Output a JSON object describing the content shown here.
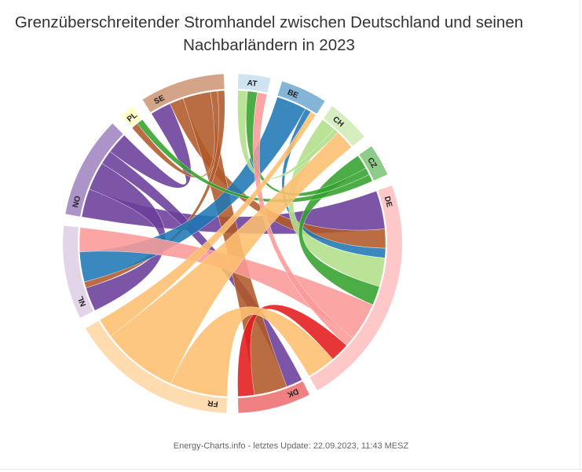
{
  "chart_data": {
    "type": "chord",
    "title_line1": "Grenzüberschreitender Stromhandel zwischen Deutschland und seinen",
    "title_line2": "Nachbarländern in 2023",
    "credits": "Energy-Charts.info - letztes Update: 22.09.2023, 11:43 MESZ",
    "nodes": [
      {
        "label": "AT",
        "color": "#a6cee3"
      },
      {
        "label": "BE",
        "color": "#1f78b4"
      },
      {
        "label": "CH",
        "color": "#b2df8a"
      },
      {
        "label": "CZ",
        "color": "#33a02c"
      },
      {
        "label": "DE",
        "color": "#fb9a99"
      },
      {
        "label": "DK",
        "color": "#e31a1c"
      },
      {
        "label": "FR",
        "color": "#fdbf6f"
      },
      {
        "label": "NL",
        "color": "#cab2d6"
      },
      {
        "label": "NO",
        "color": "#6a3d9a"
      },
      {
        "label": "PL",
        "color": "#ffff99"
      },
      {
        "label": "SE",
        "color": "#b15928"
      }
    ],
    "flows": [
      {
        "from": "NO",
        "to": "DE",
        "value": 4
      },
      {
        "from": "NO",
        "to": "NL",
        "value": 4
      },
      {
        "from": "NO",
        "to": "DK",
        "value": 2
      },
      {
        "from": "NO",
        "to": "SE",
        "value": 3
      },
      {
        "from": "SE",
        "to": "DE",
        "value": 2
      },
      {
        "from": "SE",
        "to": "DK",
        "value": 4
      },
      {
        "from": "SE",
        "to": "PL",
        "value": 1
      },
      {
        "from": "SE",
        "to": "NL",
        "value": 1
      },
      {
        "from": "BE",
        "to": "NL",
        "value": 5
      },
      {
        "from": "BE",
        "to": "DE",
        "value": 1
      },
      {
        "from": "CH",
        "to": "DE",
        "value": 3
      },
      {
        "from": "CH",
        "to": "AT",
        "value": 1
      },
      {
        "from": "CZ",
        "to": "DE",
        "value": 2
      },
      {
        "from": "CZ",
        "to": "AT",
        "value": 1
      },
      {
        "from": "CZ",
        "to": "PL",
        "value": 1
      },
      {
        "from": "DE",
        "to": "NL",
        "value": 4
      },
      {
        "from": "DE",
        "to": "AT",
        "value": 1
      },
      {
        "from": "DK",
        "to": "DE",
        "value": 2
      },
      {
        "from": "FR",
        "to": "DE",
        "value": 3
      },
      {
        "from": "FR",
        "to": "CH",
        "value": 4
      },
      {
        "from": "FR",
        "to": "BE",
        "value": 1
      }
    ]
  }
}
